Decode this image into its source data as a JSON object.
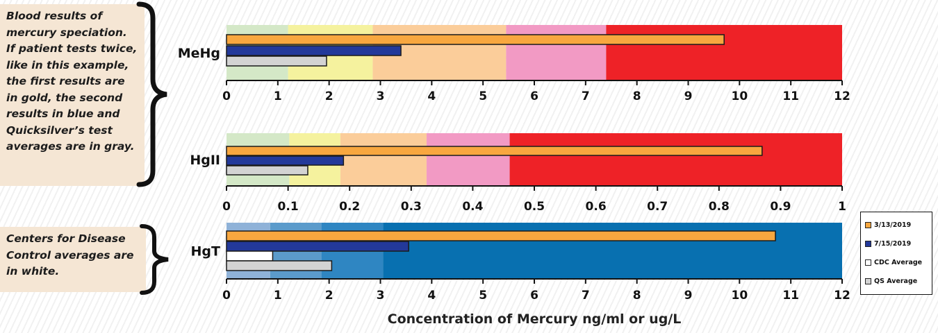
{
  "notes": {
    "blood_note": "Blood results of mercury speciation. If patient tests twice, like in this example, the first results are in gold, the second results in blue and Quicksilver’s test averages are in gray.",
    "cdc_note": "Centers for Disease Control averages are in white."
  },
  "legend": [
    {
      "label": "3/13/2019",
      "color": "#f8a73f"
    },
    {
      "label": "7/15/2019",
      "color": "#23399a"
    },
    {
      "label": "CDC Average",
      "color": "#ffffff"
    },
    {
      "label": "QS Average",
      "color": "#d3d3d3"
    }
  ],
  "colors": {
    "orange_bar": "#f8a73f",
    "blue_bar": "#23399a",
    "gray_bar": "#d3d3d3",
    "white_bar": "#ffffff"
  },
  "chart_data": [
    {
      "type": "bar",
      "orientation": "horizontal",
      "category_label": "MeHg",
      "xlim": [
        0,
        12
      ],
      "ticks": [
        "0",
        "1",
        "2",
        "3",
        "4",
        "5",
        "6",
        "7",
        "8",
        "9",
        "10",
        "11",
        "12"
      ],
      "bands": [
        {
          "from": 0,
          "to": 1.2,
          "color": "#d4e8c7"
        },
        {
          "from": 1.2,
          "to": 2.85,
          "color": "#f5f29e"
        },
        {
          "from": 2.85,
          "to": 5.45,
          "color": "#fbcd9a"
        },
        {
          "from": 5.45,
          "to": 7.4,
          "color": "#f29ac4"
        },
        {
          "from": 7.4,
          "to": 12,
          "color": "#ee2227"
        }
      ],
      "series": [
        {
          "name": "3/13/2019",
          "value": 9.7,
          "color": "#f8a73f"
        },
        {
          "name": "7/15/2019",
          "value": 3.4,
          "color": "#23399a"
        },
        {
          "name": "QS Average",
          "value": 1.95,
          "color": "#d3d3d3"
        }
      ]
    },
    {
      "type": "bar",
      "orientation": "horizontal",
      "category_label": "HgII",
      "xlim": [
        0,
        1
      ],
      "ticks": [
        "0",
        "0.1",
        "0.2",
        "0.3",
        "0.4",
        "0.5",
        "0.6",
        "0.7",
        "0.8",
        "0.9",
        "1"
      ],
      "bands": [
        {
          "from": 0,
          "to": 0.102,
          "color": "#d4e8c7"
        },
        {
          "from": 0.102,
          "to": 0.185,
          "color": "#f5f29e"
        },
        {
          "from": 0.185,
          "to": 0.325,
          "color": "#fbcd9a"
        },
        {
          "from": 0.325,
          "to": 0.46,
          "color": "#f29ac4"
        },
        {
          "from": 0.46,
          "to": 1,
          "color": "#ee2227"
        }
      ],
      "series": [
        {
          "name": "3/13/2019",
          "value": 0.87,
          "color": "#f8a73f"
        },
        {
          "name": "7/15/2019",
          "value": 0.19,
          "color": "#23399a"
        },
        {
          "name": "QS Average",
          "value": 0.132,
          "color": "#d3d3d3"
        }
      ]
    },
    {
      "type": "bar",
      "orientation": "horizontal",
      "category_label": "HgT",
      "xlim": [
        0,
        12
      ],
      "ticks": [
        "0",
        "1",
        "2",
        "3",
        "4",
        "5",
        "6",
        "7",
        "8",
        "9",
        "10",
        "11",
        "12"
      ],
      "bands": [
        {
          "from": 0,
          "to": 0.85,
          "color": "#8fb2d8"
        },
        {
          "from": 0.85,
          "to": 1.85,
          "color": "#5b9bcb"
        },
        {
          "from": 1.85,
          "to": 3.05,
          "color": "#2f86c2"
        },
        {
          "from": 3.05,
          "to": 12,
          "color": "#0870b0"
        }
      ],
      "series": [
        {
          "name": "3/13/2019",
          "value": 10.7,
          "color": "#f8a73f"
        },
        {
          "name": "7/15/2019",
          "value": 3.55,
          "color": "#23399a"
        },
        {
          "name": "CDC Average",
          "value": 0.9,
          "color": "#ffffff"
        },
        {
          "name": "QS Average",
          "value": 2.05,
          "color": "#d3d3d3"
        }
      ]
    }
  ],
  "xaxis_title": "Concentration of Mercury ng/ml or ug/L"
}
